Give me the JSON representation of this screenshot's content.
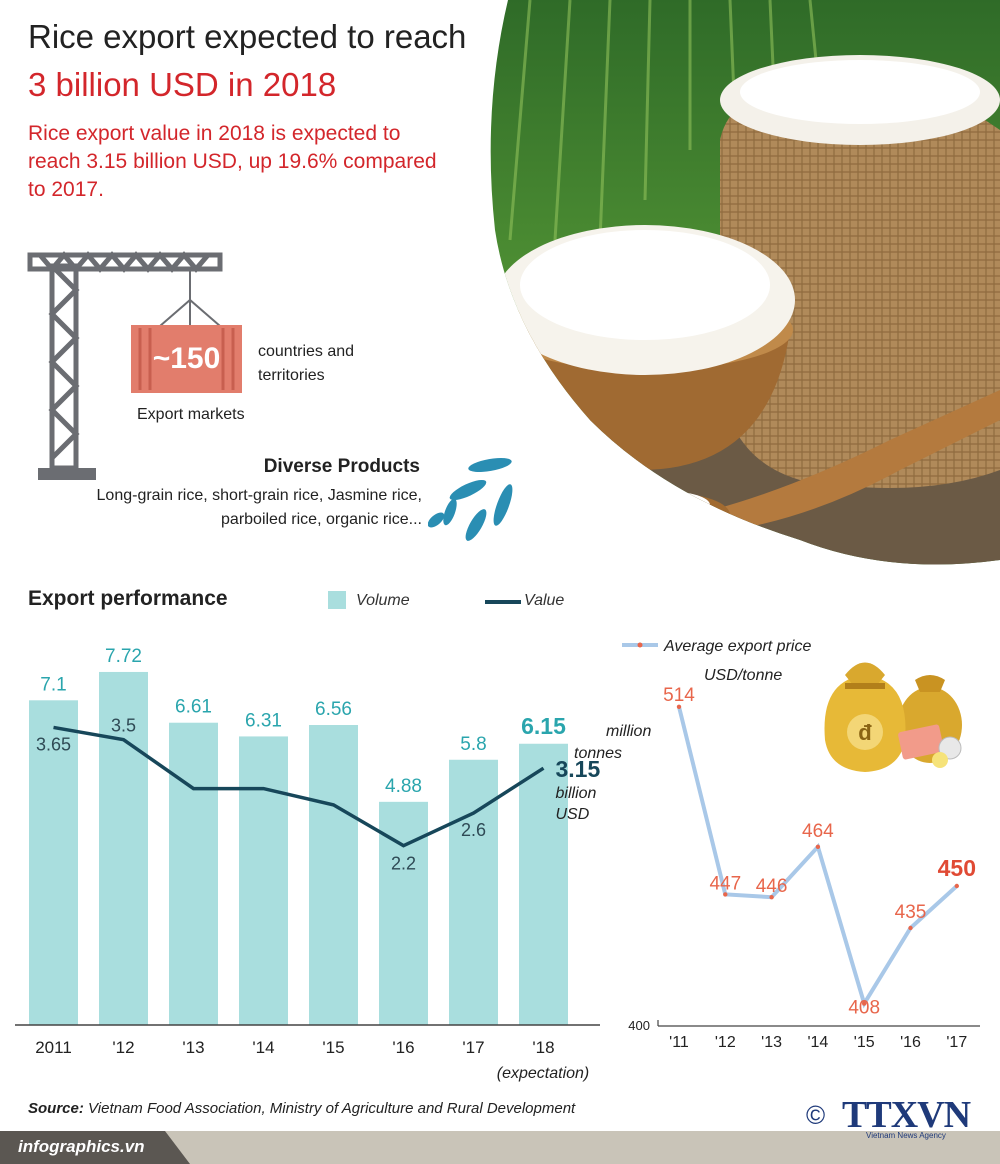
{
  "header": {
    "title_line1": "Rice export expected to reach",
    "title_line2": "3 billion USD in 2018",
    "subtitle": "Rice export value in 2018 is expected to reach 3.15 billion USD, up 19.6% compared to 2017."
  },
  "markets": {
    "count": "~150",
    "description": "countries and territories",
    "label": "Export markets"
  },
  "products": {
    "title": "Diverse Products",
    "description": "Long-grain rice, short-grain rice, Jasmine rice, parboiled rice, organic rice..."
  },
  "performance": {
    "title": "Export performance",
    "legend_volume": "Volume",
    "legend_value": "Value",
    "volume_unit": "million tonnes",
    "value_unit": "billion USD",
    "expectation_note": "(expectation)"
  },
  "price": {
    "legend": "Average export price",
    "unit": "USD/tonne"
  },
  "chart_data": [
    {
      "type": "bar",
      "title": "Export performance",
      "categories": [
        "2011",
        "'12",
        "'13",
        "'14",
        "'15",
        "'16",
        "'17",
        "'18"
      ],
      "series": [
        {
          "name": "Volume",
          "type": "bar",
          "unit": "million tonnes",
          "values": [
            7.1,
            7.72,
            6.61,
            6.31,
            6.56,
            4.88,
            5.8,
            6.15
          ],
          "labels": [
            "7.1",
            "7.72",
            "6.61",
            "6.31",
            "6.56",
            "4.88",
            "5.8",
            "6.15"
          ]
        },
        {
          "name": "Value",
          "type": "line",
          "unit": "billion USD",
          "values": [
            3.65,
            3.5,
            2.9,
            2.9,
            2.7,
            2.2,
            2.6,
            3.15
          ],
          "labels": [
            "3.65",
            "3.5",
            null,
            null,
            null,
            "2.2",
            "2.6",
            "3.15"
          ]
        }
      ],
      "volume_ylim": [
        0,
        8.2
      ],
      "value_ylim": [
        0,
        4.6
      ],
      "colors": {
        "bar": "#a9dede",
        "bar_label": "#2aa5ad",
        "line": "#17475a"
      }
    },
    {
      "type": "line",
      "categories": [
        "'11",
        "'12",
        "'13",
        "'14",
        "'15",
        "'16",
        "'17"
      ],
      "series": [
        {
          "name": "Average export price",
          "values": [
            514,
            447,
            446,
            464,
            408,
            435,
            450
          ],
          "labels": [
            "514",
            "447",
            "446",
            "464",
            "408",
            "435",
            "450"
          ]
        }
      ],
      "ylim": [
        400,
        520
      ],
      "yticks": [
        "400"
      ],
      "colors": {
        "line": "#a9c8e8",
        "label": "#e8664b",
        "last_label": "#e04a34"
      }
    }
  ],
  "footer": {
    "source_label": "Source:",
    "source_text": "Vietnam Food Association, Ministry of Agriculture and Rural Development",
    "website": "infographics.vn",
    "copyright": "©",
    "brand": "TTXVN",
    "brand_sub": "Vietnam News Agency"
  },
  "colors": {
    "accent_red": "#d3262b",
    "crate": "#e27d6c",
    "crane": "#6b6d72"
  },
  "icons": [
    "crane-icon",
    "container-icon",
    "rice-grains-icon",
    "money-bag-icon",
    "rice-bowl-photo"
  ]
}
